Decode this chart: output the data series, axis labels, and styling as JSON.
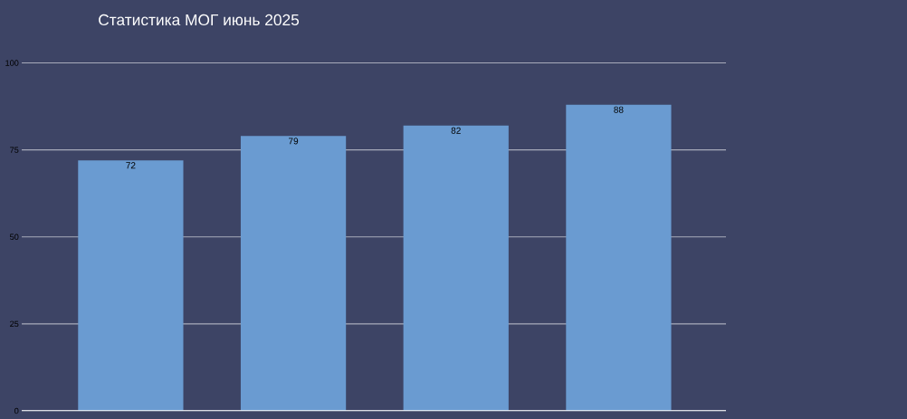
{
  "chart_data": {
    "type": "bar",
    "title": "Статистика МОГ июнь 2025",
    "categories": [
      null,
      null,
      null,
      null
    ],
    "values": [
      72,
      79,
      82,
      88
    ],
    "color": "#6a9bd1",
    "ylim": [
      0,
      100
    ],
    "yticks": [
      0,
      25,
      50,
      75,
      100
    ],
    "grid": "y",
    "data_labels": true
  }
}
